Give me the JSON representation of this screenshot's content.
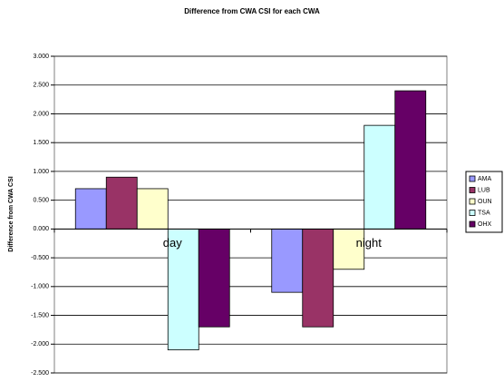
{
  "chart_data": {
    "type": "bar",
    "title": "Difference from CWA CSI for each CWA",
    "y_label": "Difference from CWA CSI",
    "categories": [
      "day",
      "night"
    ],
    "series": [
      {
        "name": "AMA",
        "color": "#9999ff",
        "values": [
          0.7,
          -1.1
        ]
      },
      {
        "name": "LUB",
        "color": "#993366",
        "values": [
          0.9,
          -1.7
        ]
      },
      {
        "name": "OUN",
        "color": "#ffffcc",
        "values": [
          0.7,
          -0.7
        ]
      },
      {
        "name": "TSA",
        "color": "#ccffff",
        "values": [
          -2.1,
          1.8
        ]
      },
      {
        "name": "OHX",
        "color": "#660066",
        "values": [
          -1.7,
          2.4
        ]
      }
    ],
    "ylim": [
      -2.5,
      3.0
    ],
    "yticks": [
      {
        "value": -2.5,
        "label": "-2.500"
      },
      {
        "value": -2.0,
        "label": "-2.000"
      },
      {
        "value": -1.5,
        "label": "-1.500"
      },
      {
        "value": -1.0,
        "label": "-1.000"
      },
      {
        "value": -0.5,
        "label": "-0.500"
      },
      {
        "value": 0,
        "label": "0.000"
      },
      {
        "value": 0.5,
        "label": "0.500"
      },
      {
        "value": 1.0,
        "label": "1.000"
      },
      {
        "value": 1.5,
        "label": "1.500"
      },
      {
        "value": 2.0,
        "label": "2.000"
      },
      {
        "value": 2.5,
        "label": "2.500"
      },
      {
        "value": 3.0,
        "label": "3.000"
      }
    ],
    "grid": true,
    "legend": "right"
  }
}
